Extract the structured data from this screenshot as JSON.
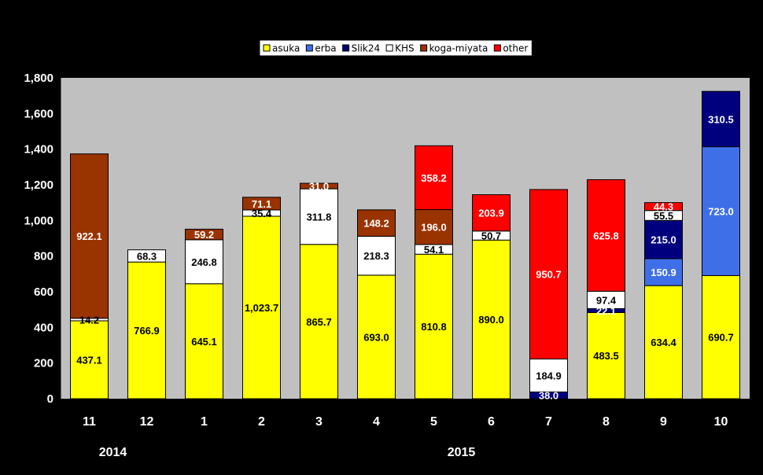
{
  "chart_data": {
    "type": "bar",
    "stacked": true,
    "categories": [
      "11",
      "12",
      "1",
      "2",
      "3",
      "4",
      "5",
      "6",
      "7",
      "8",
      "9",
      "10"
    ],
    "year_labels": [
      {
        "label": "2014",
        "category": "11"
      },
      {
        "label": "2015",
        "category": "5"
      }
    ],
    "ylim": [
      0,
      1800
    ],
    "yticks": [
      "0",
      "200",
      "400",
      "600",
      "800",
      "1,000",
      "1,200",
      "1,400",
      "1,600",
      "1,800"
    ],
    "ytick_values": [
      0,
      200,
      400,
      600,
      800,
      1000,
      1200,
      1400,
      1600,
      1800
    ],
    "grid": false,
    "legend_position": "top-right",
    "series": [
      {
        "name": "asuka",
        "color": "#FFFF00",
        "label_color": "#000000",
        "values": [
          437.1,
          766.9,
          645.1,
          1023.7,
          865.7,
          693.0,
          810.8,
          890.0,
          0,
          483.5,
          634.4,
          690.7
        ],
        "labels": [
          "437.1",
          "766.9",
          "645.1",
          "1,023.7",
          "865.7",
          "693.0",
          "810.8",
          "890.0",
          "",
          "483.5",
          "634.4",
          "690.7"
        ]
      },
      {
        "name": "erba",
        "color": "#3F6FE8",
        "label_color": "#FFFFFF",
        "values": [
          0,
          0,
          0,
          0,
          0,
          0,
          0,
          0,
          0,
          0,
          150.9,
          723.0
        ],
        "labels": [
          "",
          "",
          "",
          "",
          "",
          "",
          "",
          "",
          "",
          "",
          "150.9",
          "723.0"
        ]
      },
      {
        "name": "Slik24",
        "color": "#00007F",
        "label_color": "#FFFFFF",
        "values": [
          0,
          0,
          0,
          0,
          0,
          0,
          0,
          0,
          38.0,
          22.1,
          215.0,
          310.5
        ],
        "labels": [
          "",
          "",
          "",
          "",
          "",
          "",
          "",
          "",
          "38.0",
          "22.1",
          "215.0",
          "310.5"
        ]
      },
      {
        "name": "KHS",
        "color": "#FFFFFF",
        "label_color": "#000000",
        "values": [
          14.2,
          68.3,
          246.8,
          35.4,
          311.8,
          218.3,
          54.1,
          50.7,
          184.9,
          97.4,
          55.5,
          0
        ],
        "labels": [
          "14.2",
          "68.3",
          "246.8",
          "35.4",
          "311.8",
          "218.3",
          "54.1",
          "50.7",
          "184.9",
          "97.4",
          "55.5",
          ""
        ]
      },
      {
        "name": "koga-miyata",
        "color": "#993300",
        "label_color": "#FFFFFF",
        "values": [
          922.1,
          0,
          59.2,
          71.1,
          31.0,
          148.2,
          196.0,
          0,
          0,
          0,
          0,
          0
        ],
        "labels": [
          "922.1",
          "",
          "59.2",
          "71.1",
          "31.0",
          "148.2",
          "196.0",
          "",
          "",
          "",
          "",
          ""
        ]
      },
      {
        "name": "other",
        "color": "#FF0000",
        "label_color": "#FFFFFF",
        "values": [
          0,
          0,
          0,
          0,
          0,
          0,
          358.2,
          203.9,
          950.7,
          625.8,
          44.3,
          0
        ],
        "labels": [
          "",
          "",
          "",
          "",
          "",
          "",
          "358.2",
          "203.9",
          "950.7",
          "625.8",
          "44.3",
          ""
        ]
      }
    ]
  }
}
